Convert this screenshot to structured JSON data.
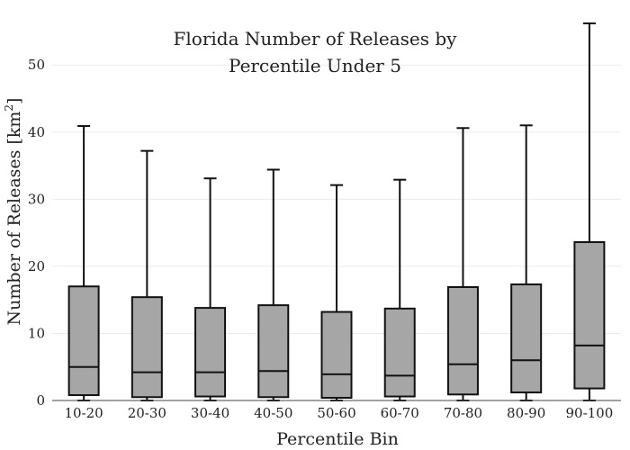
{
  "chart_data": {
    "type": "box",
    "title_lines": [
      "Florida Number of Releases by",
      "Percentile Under 5"
    ],
    "xlabel": "Percentile Bin",
    "ylabel": "Number of Releases  [km",
    "ylabel_superscript": "2",
    "ylabel_suffix": "]",
    "ylim": [
      0,
      57
    ],
    "yticks": [
      0,
      10,
      20,
      30,
      40,
      50
    ],
    "grid": true,
    "categories": [
      "10-20",
      "20-30",
      "30-40",
      "40-50",
      "50-60",
      "60-70",
      "70-80",
      "80-90",
      "90-100"
    ],
    "boxes": [
      {
        "min": 0.0,
        "q1": 0.8,
        "median": 5.0,
        "q3": 17.0,
        "max": 40.9
      },
      {
        "min": 0.0,
        "q1": 0.5,
        "median": 4.2,
        "q3": 15.4,
        "max": 37.2
      },
      {
        "min": 0.0,
        "q1": 0.6,
        "median": 4.2,
        "q3": 13.8,
        "max": 33.1
      },
      {
        "min": 0.0,
        "q1": 0.5,
        "median": 4.4,
        "q3": 14.2,
        "max": 34.4
      },
      {
        "min": 0.0,
        "q1": 0.4,
        "median": 3.9,
        "q3": 13.2,
        "max": 32.1
      },
      {
        "min": 0.0,
        "q1": 0.6,
        "median": 3.7,
        "q3": 13.7,
        "max": 32.9
      },
      {
        "min": 0.0,
        "q1": 0.9,
        "median": 5.4,
        "q3": 16.9,
        "max": 40.6
      },
      {
        "min": 0.0,
        "q1": 1.2,
        "median": 6.0,
        "q3": 17.3,
        "max": 41.0
      },
      {
        "min": 0.0,
        "q1": 1.8,
        "median": 8.2,
        "q3": 23.6,
        "max": 56.2
      }
    ],
    "box_fill": "#a6a6a6",
    "line_color": "#111111"
  }
}
